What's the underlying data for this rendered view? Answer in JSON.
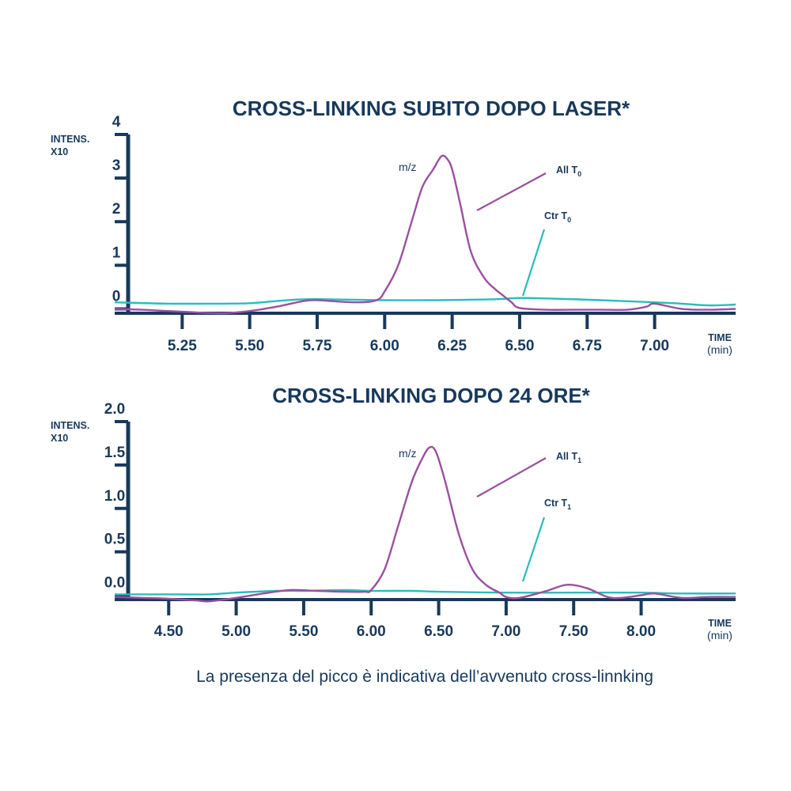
{
  "colors": {
    "axis": "#17395c",
    "all_series": "#9b4fa0",
    "ctr_series": "#2bbcbc",
    "background": "#ffffff"
  },
  "chart_data": [
    {
      "type": "line",
      "title": "CROSS-LINKING SUBITO DOPO LASER*",
      "ylabel_line1": "INTENS.",
      "ylabel_line2": "X10",
      "xlabel_line1": "TIME",
      "xlabel_line2": "(min)",
      "xlim": [
        5.0,
        7.3
      ],
      "ylim": [
        -0.1,
        4.0
      ],
      "x_ticks": [
        5.25,
        5.5,
        5.75,
        6.0,
        6.25,
        6.5,
        6.75,
        7.0
      ],
      "x_tick_labels": [
        "5.25",
        "5.50",
        "5.75",
        "6.00",
        "6.25",
        "6.50",
        "6.75",
        "7.00"
      ],
      "y_ticks": [
        0,
        1,
        2,
        3,
        4
      ],
      "y_tick_labels": [
        "0",
        "1",
        "2",
        "3",
        "4"
      ],
      "mz_label": "m/z",
      "series": [
        {
          "name_main": "All T",
          "name_sub": "0",
          "x": [
            5.0,
            5.1,
            5.2,
            5.3,
            5.4,
            5.5,
            5.6,
            5.7,
            5.75,
            5.8,
            5.9,
            5.97,
            6.0,
            6.05,
            6.1,
            6.14,
            6.18,
            6.21,
            6.23,
            6.25,
            6.28,
            6.32,
            6.37,
            6.41,
            6.44,
            6.47,
            6.5,
            6.6,
            6.7,
            6.8,
            6.9,
            6.97,
            7.0,
            7.1,
            7.2,
            7.3
          ],
          "y": [
            0.0,
            -0.02,
            -0.05,
            -0.08,
            -0.1,
            -0.05,
            0.05,
            0.18,
            0.2,
            0.18,
            0.15,
            0.2,
            0.4,
            1.0,
            2.0,
            2.8,
            3.2,
            3.5,
            3.45,
            3.2,
            2.4,
            1.3,
            0.7,
            0.45,
            0.3,
            0.15,
            0.02,
            -0.02,
            -0.02,
            -0.02,
            -0.02,
            0.05,
            0.12,
            0.0,
            -0.02,
            0.0
          ]
        },
        {
          "name_main": "Ctr T",
          "name_sub": "0",
          "x": [
            5.0,
            5.2,
            5.4,
            5.5,
            5.6,
            5.7,
            5.8,
            6.0,
            6.2,
            6.4,
            6.5,
            6.6,
            6.8,
            7.0,
            7.1,
            7.2,
            7.3
          ],
          "y": [
            0.15,
            0.12,
            0.12,
            0.13,
            0.18,
            0.22,
            0.22,
            0.2,
            0.2,
            0.22,
            0.25,
            0.24,
            0.2,
            0.15,
            0.12,
            0.08,
            0.1
          ]
        }
      ]
    },
    {
      "type": "line",
      "title": "CROSS-LINKING  DOPO 24 ORE*",
      "ylabel_line1": "INTENS.",
      "ylabel_line2": "X10",
      "xlabel_line1": "TIME",
      "xlabel_line2": "(min)",
      "xlim": [
        4.1,
        8.7
      ],
      "ylim": [
        -0.05,
        2.0
      ],
      "x_ticks": [
        4.5,
        5.0,
        5.5,
        6.0,
        6.5,
        7.0,
        7.5,
        8.0
      ],
      "x_tick_labels": [
        "4.50",
        "5.00",
        "5.50",
        "6.00",
        "6.50",
        "7.00",
        "7.50",
        "8.00"
      ],
      "y_ticks": [
        0.0,
        0.5,
        1.0,
        1.5,
        2.0
      ],
      "y_tick_labels": [
        "0.0",
        "0.5",
        "1.0",
        "1.5",
        "2.0"
      ],
      "mz_label": "m/z",
      "series": [
        {
          "name_main": "All T",
          "name_sub": "1",
          "x": [
            4.1,
            4.3,
            4.5,
            4.7,
            4.8,
            5.0,
            5.2,
            5.4,
            5.6,
            5.8,
            5.95,
            6.0,
            6.1,
            6.2,
            6.3,
            6.37,
            6.43,
            6.48,
            6.55,
            6.65,
            6.75,
            6.85,
            6.95,
            7.0,
            7.1,
            7.3,
            7.45,
            7.6,
            7.75,
            7.85,
            8.0,
            8.1,
            8.3,
            8.5,
            8.7
          ],
          "y": [
            -0.02,
            -0.03,
            -0.04,
            -0.06,
            -0.07,
            -0.03,
            0.02,
            0.06,
            0.05,
            0.04,
            0.04,
            0.06,
            0.3,
            0.8,
            1.3,
            1.55,
            1.7,
            1.65,
            1.3,
            0.7,
            0.3,
            0.12,
            0.03,
            -0.02,
            -0.03,
            0.05,
            0.12,
            0.08,
            -0.02,
            -0.03,
            0.0,
            0.02,
            -0.03,
            -0.02,
            -0.02
          ]
        },
        {
          "name_main": "Ctr T",
          "name_sub": "1",
          "x": [
            4.1,
            4.5,
            4.8,
            5.0,
            5.3,
            5.5,
            5.8,
            6.0,
            6.3,
            6.5,
            7.0,
            7.5,
            8.0,
            8.3,
            8.7
          ],
          "y": [
            0.01,
            0.01,
            0.01,
            0.03,
            0.05,
            0.05,
            0.06,
            0.05,
            0.05,
            0.04,
            0.03,
            0.03,
            0.03,
            0.02,
            0.02
          ]
        }
      ]
    }
  ],
  "footer_text": "La presenza del picco è indicativa dell’avvenuto cross-linnking"
}
